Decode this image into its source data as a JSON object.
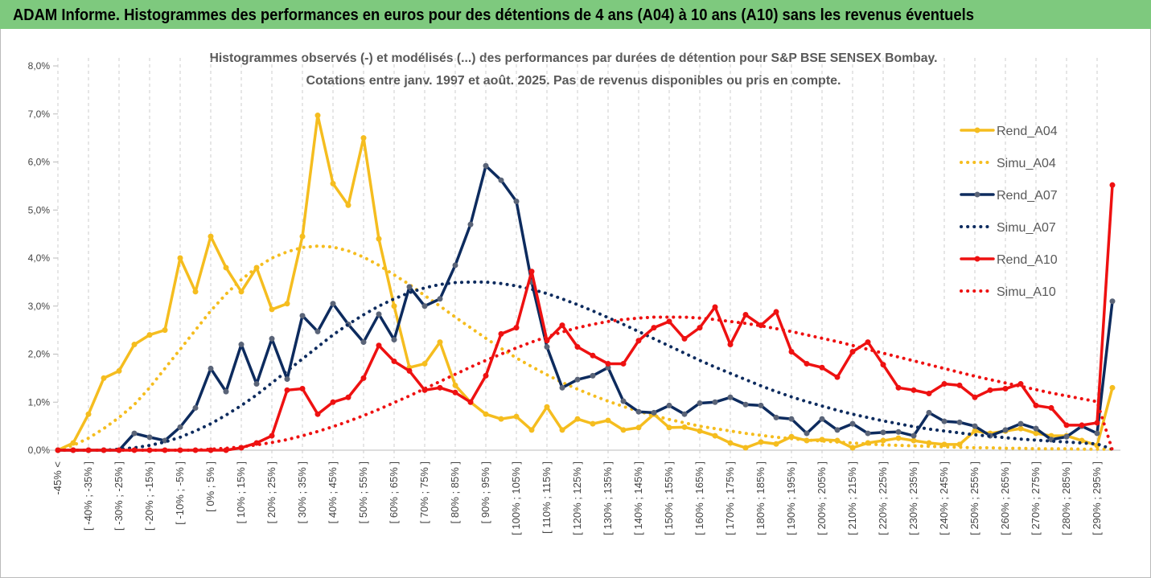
{
  "chart_data": {
    "type": "line",
    "title": "ADAM Informe. Histogrammes des performances en euros pour des détentions de 4 ans (A04) à 10 ans (A10) sans les revenus éventuels",
    "subtitle": [
      "Histogrammes observés (-) et modélisés (...) des performances par durées de détention pour S&P BSE SENSEX Bombay.",
      "Cotations entre janv. 1997 et août. 2025. Pas de revenus disponibles ou pris en compte."
    ],
    "categories": [
      "-45% <",
      null,
      "[ -40% ; -35% ]",
      null,
      "[ -30% ; -25% ]",
      null,
      "[ -20% ; -15% ]",
      null,
      "[ -10% ; -5% ]",
      null,
      "[ 0% ; 5% ]",
      null,
      "[ 10% ; 15% ]",
      null,
      "[ 20% ; 25% ]",
      null,
      "[ 30% ; 35% ]",
      null,
      "[ 40% ; 45% ]",
      null,
      "[ 50% ; 55% ]",
      null,
      "[ 60% ; 65% ]",
      null,
      "[ 70% ; 75% ]",
      null,
      "[ 80% ; 85% ]",
      null,
      "[ 90% ; 95% ]",
      null,
      "[ 100% ; 105% ]",
      null,
      "[ 110% ; 115% ]",
      null,
      "[ 120% ; 125% ]",
      null,
      "[ 130% ; 135% ]",
      null,
      "[ 140% ; 145% ]",
      null,
      "[ 150% ; 155% ]",
      null,
      "[ 160% ; 165% ]",
      null,
      "[ 170% ; 175% ]",
      null,
      "[ 180% ; 185% ]",
      null,
      "[ 190% ; 195% ]",
      null,
      "[ 200% ; 205% ]",
      null,
      "[ 210% ; 215% ]",
      null,
      "[ 220% ; 225% ]",
      null,
      "[ 230% ; 235% ]",
      null,
      "[ 240% ; 245% ]",
      null,
      "[ 250% ; 255% ]",
      null,
      "[ 260% ; 265% ]",
      null,
      "[ 270% ; 275% ]",
      null,
      "[ 280% ; 285% ]",
      null,
      "[ 290% ; 295% ]",
      null
    ],
    "series": [
      {
        "name": "Rend_A04",
        "color": "#f5bd1f",
        "style": "solid",
        "markers": true,
        "values": [
          0,
          0.15,
          0.75,
          1.5,
          1.65,
          2.2,
          2.4,
          2.5,
          4.0,
          3.3,
          4.45,
          3.8,
          3.3,
          3.8,
          2.93,
          3.05,
          4.45,
          6.97,
          5.55,
          5.1,
          6.5,
          4.4,
          3.0,
          1.72,
          1.8,
          2.25,
          1.35,
          1.0,
          0.75,
          0.65,
          0.7,
          0.42,
          0.9,
          0.42,
          0.65,
          0.55,
          0.62,
          0.42,
          0.47,
          0.75,
          0.47,
          0.48,
          0.4,
          0.3,
          0.15,
          0.05,
          0.17,
          0.13,
          0.28,
          0.2,
          0.22,
          0.2,
          0.05,
          0.15,
          0.2,
          0.25,
          0.2,
          0.15,
          0.12,
          0.12,
          0.4,
          0.35,
          0.4,
          0.45,
          0.35,
          0.3,
          0.3,
          0.2,
          0.1,
          1.3
        ]
      },
      {
        "name": "Simu_A04",
        "color": "#f5bd1f",
        "style": "dotted",
        "markers": false,
        "values": [
          0,
          0.1,
          0.25,
          0.45,
          0.68,
          0.95,
          1.3,
          1.7,
          2.1,
          2.5,
          2.9,
          3.25,
          3.55,
          3.8,
          4.0,
          4.13,
          4.22,
          4.25,
          4.23,
          4.15,
          4.02,
          3.85,
          3.65,
          3.45,
          3.22,
          3.0,
          2.77,
          2.55,
          2.33,
          2.12,
          1.92,
          1.74,
          1.57,
          1.41,
          1.27,
          1.14,
          1.02,
          0.91,
          0.81,
          0.72,
          0.64,
          0.57,
          0.5,
          0.45,
          0.4,
          0.35,
          0.31,
          0.27,
          0.24,
          0.21,
          0.19,
          0.17,
          0.15,
          0.13,
          0.11,
          0.1,
          0.09,
          0.08,
          0.07,
          0.06,
          0.05,
          0.05,
          0.04,
          0.04,
          0.03,
          0.03,
          0.03,
          0.02,
          0.02,
          0.02
        ]
      },
      {
        "name": "Rend_A07",
        "color": "#0d2b5e",
        "style": "solid",
        "markers": true,
        "values": [
          0,
          0,
          0,
          0,
          0,
          0.35,
          0.27,
          0.2,
          0.48,
          0.88,
          1.7,
          1.22,
          2.2,
          1.38,
          2.32,
          1.48,
          2.8,
          2.47,
          3.05,
          2.62,
          2.25,
          2.83,
          2.3,
          3.4,
          3.0,
          3.15,
          3.85,
          4.7,
          5.92,
          5.62,
          5.18,
          3.5,
          2.15,
          1.3,
          1.47,
          1.55,
          1.72,
          1.02,
          0.8,
          0.78,
          0.93,
          0.75,
          0.98,
          1.0,
          1.1,
          0.95,
          0.93,
          0.68,
          0.65,
          0.35,
          0.65,
          0.42,
          0.55,
          0.35,
          0.37,
          0.38,
          0.3,
          0.78,
          0.6,
          0.58,
          0.5,
          0.3,
          0.42,
          0.55,
          0.45,
          0.22,
          0.28,
          0.5,
          0.35,
          3.1
        ]
      },
      {
        "name": "Simu_A07",
        "color": "#0d2b5e",
        "style": "dotted",
        "markers": false,
        "values": [
          0,
          0,
          0,
          0,
          0.02,
          0.05,
          0.1,
          0.17,
          0.27,
          0.4,
          0.55,
          0.73,
          0.93,
          1.15,
          1.4,
          1.65,
          1.9,
          2.15,
          2.4,
          2.62,
          2.82,
          3.0,
          3.15,
          3.28,
          3.38,
          3.45,
          3.49,
          3.5,
          3.5,
          3.47,
          3.42,
          3.35,
          3.26,
          3.15,
          3.03,
          2.9,
          2.76,
          2.62,
          2.47,
          2.32,
          2.17,
          2.02,
          1.87,
          1.73,
          1.6,
          1.47,
          1.34,
          1.22,
          1.11,
          1.01,
          0.92,
          0.83,
          0.75,
          0.68,
          0.61,
          0.55,
          0.49,
          0.44,
          0.4,
          0.36,
          0.32,
          0.29,
          0.26,
          0.23,
          0.21,
          0.19,
          0.17,
          0.15,
          0.13,
          0.02
        ]
      },
      {
        "name": "Rend_A10",
        "color": "#ee1111",
        "style": "solid",
        "markers": true,
        "values": [
          0,
          0,
          0,
          0,
          0,
          0,
          0,
          0,
          0,
          0,
          0,
          0,
          0.05,
          0.15,
          0.3,
          1.25,
          1.28,
          0.75,
          1.0,
          1.1,
          1.5,
          2.18,
          1.85,
          1.65,
          1.25,
          1.3,
          1.2,
          1.0,
          1.55,
          2.42,
          2.55,
          3.72,
          2.28,
          2.6,
          2.15,
          1.97,
          1.8,
          1.8,
          2.28,
          2.55,
          2.68,
          2.32,
          2.55,
          2.98,
          2.2,
          2.82,
          2.6,
          2.88,
          2.05,
          1.8,
          1.72,
          1.52,
          2.05,
          2.25,
          1.78,
          1.3,
          1.25,
          1.18,
          1.38,
          1.35,
          1.1,
          1.25,
          1.28,
          1.38,
          0.93,
          0.88,
          0.52,
          0.52,
          0.57,
          5.52
        ]
      },
      {
        "name": "Simu_A10",
        "color": "#ee1111",
        "style": "dotted",
        "markers": false,
        "values": [
          0,
          0,
          0,
          0,
          0,
          0,
          0,
          0,
          0,
          0,
          0.02,
          0.04,
          0.07,
          0.11,
          0.16,
          0.22,
          0.3,
          0.39,
          0.49,
          0.6,
          0.72,
          0.85,
          0.99,
          1.13,
          1.28,
          1.43,
          1.58,
          1.73,
          1.87,
          2.0,
          2.13,
          2.25,
          2.36,
          2.46,
          2.55,
          2.62,
          2.68,
          2.72,
          2.75,
          2.77,
          2.77,
          2.77,
          2.75,
          2.72,
          2.68,
          2.64,
          2.59,
          2.53,
          2.47,
          2.4,
          2.33,
          2.26,
          2.18,
          2.1,
          2.02,
          1.94,
          1.86,
          1.78,
          1.7,
          1.62,
          1.54,
          1.47,
          1.4,
          1.33,
          1.26,
          1.19,
          1.13,
          1.07,
          1.01,
          0
        ]
      }
    ],
    "ylim": [
      0,
      8
    ],
    "yticks": [
      {
        "value": 0,
        "label": "0,0%"
      },
      {
        "value": 1,
        "label": "1,0%"
      },
      {
        "value": 2,
        "label": "2,0%"
      },
      {
        "value": 3,
        "label": "3,0%"
      },
      {
        "value": 4,
        "label": "4,0%"
      },
      {
        "value": 5,
        "label": "5,0%"
      },
      {
        "value": 6,
        "label": "6,0%"
      },
      {
        "value": 7,
        "label": "7,0%"
      },
      {
        "value": 8,
        "label": "8,0%"
      }
    ],
    "legend": "right"
  }
}
